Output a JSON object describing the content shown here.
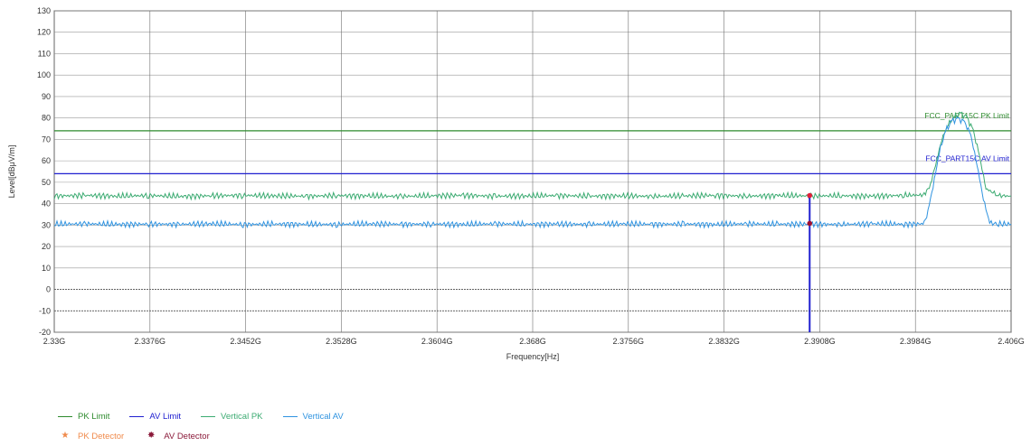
{
  "chart_data": {
    "type": "line",
    "xlabel": "Frequency[Hz]",
    "ylabel": "Level[dBμV/m]",
    "xlim": [
      2.33,
      2.406
    ],
    "ylim": [
      -20,
      130
    ],
    "x_ticks": [
      2.33,
      2.3376,
      2.3452,
      2.3528,
      2.3604,
      2.368,
      2.3756,
      2.3832,
      2.3908,
      2.3984,
      2.406
    ],
    "x_tick_labels": [
      "2.33G",
      "2.3376G",
      "2.3452G",
      "2.3528G",
      "2.3604G",
      "2.368G",
      "2.3756G",
      "2.3832G",
      "2.3908G",
      "2.3984G",
      "2.406G"
    ],
    "y_ticks": [
      -20,
      -10,
      0,
      10,
      20,
      30,
      40,
      50,
      60,
      70,
      80,
      90,
      100,
      110,
      120,
      130
    ],
    "y_tick_labels": [
      "-20",
      "-10",
      "0",
      "10",
      "20",
      "30",
      "40",
      "50",
      "60",
      "70",
      "80",
      "90",
      "100",
      "110",
      "120",
      "130"
    ],
    "grid": true,
    "limits": [
      {
        "name": "PK Limit",
        "value": 74,
        "color": "#2e8b2e",
        "label": "FCC_PART15C PK Limit"
      },
      {
        "name": "AV Limit",
        "value": 54,
        "color": "#2020d0",
        "label": "FCC_PART15C AV Limit"
      }
    ],
    "series": [
      {
        "name": "Vertical PK",
        "color": "#3cab72",
        "x": [
          2.33,
          2.3325,
          2.335,
          2.3375,
          2.34,
          2.3425,
          2.345,
          2.3475,
          2.35,
          2.3525,
          2.355,
          2.3575,
          2.36,
          2.3625,
          2.365,
          2.3675,
          2.37,
          2.3725,
          2.375,
          2.3775,
          2.38,
          2.3825,
          2.385,
          2.3875,
          2.39,
          2.3925,
          2.395,
          2.3975,
          2.399,
          2.3995,
          2.4,
          2.4005,
          2.401,
          2.4015,
          2.402,
          2.4025,
          2.403,
          2.4035,
          2.404,
          2.405,
          2.406
        ],
        "y": [
          43.6,
          43.9,
          43.5,
          43.8,
          43.4,
          43.7,
          43.9,
          43.6,
          43.5,
          43.8,
          43.6,
          43.4,
          43.7,
          43.9,
          43.5,
          43.6,
          43.8,
          43.5,
          43.7,
          43.4,
          43.6,
          43.9,
          43.5,
          43.8,
          43.6,
          43.7,
          43.5,
          43.9,
          44.0,
          47.0,
          58.0,
          70.0,
          77.0,
          80.5,
          82.0,
          80.0,
          74.0,
          62.0,
          47.0,
          43.8,
          43.5
        ]
      },
      {
        "name": "Vertical AV",
        "color": "#2f93e0",
        "x": [
          2.33,
          2.3325,
          2.335,
          2.3375,
          2.34,
          2.3425,
          2.345,
          2.3475,
          2.35,
          2.3525,
          2.355,
          2.3575,
          2.36,
          2.3625,
          2.365,
          2.3675,
          2.37,
          2.3725,
          2.375,
          2.3775,
          2.38,
          2.3825,
          2.385,
          2.3875,
          2.39,
          2.3925,
          2.395,
          2.3975,
          2.399,
          2.3993,
          2.3998,
          2.4003,
          2.4008,
          2.4013,
          2.4018,
          2.4023,
          2.4028,
          2.4033,
          2.4038,
          2.4043,
          2.405,
          2.406
        ],
        "y": [
          30.4,
          30.6,
          30.3,
          30.5,
          30.4,
          30.6,
          30.3,
          30.5,
          30.4,
          30.3,
          30.6,
          30.4,
          30.5,
          30.3,
          30.6,
          30.4,
          30.5,
          30.3,
          30.6,
          30.4,
          30.5,
          30.3,
          30.6,
          30.4,
          30.5,
          30.3,
          30.6,
          30.4,
          30.6,
          34.0,
          48.0,
          64.0,
          74.0,
          78.5,
          79.5,
          78.0,
          72.0,
          58.0,
          42.0,
          31.0,
          30.5,
          30.4
        ]
      }
    ],
    "detectors": [
      {
        "name": "PK Detector",
        "color": "#f08a4b",
        "symbol": "★",
        "x": 2.39,
        "y": 43.8
      },
      {
        "name": "AV Detector",
        "color": "#8b1a3a",
        "symbol": "✸",
        "x": 2.39,
        "y": 30.8
      }
    ],
    "marker_line": {
      "x": 2.39,
      "y_top": 44,
      "y_bottom": -20,
      "color": "#2020d0"
    },
    "legend": [
      {
        "label": "PK Limit",
        "color": "#2e8b2e",
        "kind": "line"
      },
      {
        "label": "AV Limit",
        "color": "#2020d0",
        "kind": "line"
      },
      {
        "label": "Vertical PK",
        "color": "#3cab72",
        "kind": "line"
      },
      {
        "label": "Vertical AV",
        "color": "#2f93e0",
        "kind": "line"
      },
      {
        "label": "PK Detector",
        "color": "#f08a4b",
        "kind": "symbol",
        "symbol": "★"
      },
      {
        "label": "AV Detector",
        "color": "#8b1a3a",
        "kind": "symbol",
        "symbol": "✸"
      }
    ]
  }
}
